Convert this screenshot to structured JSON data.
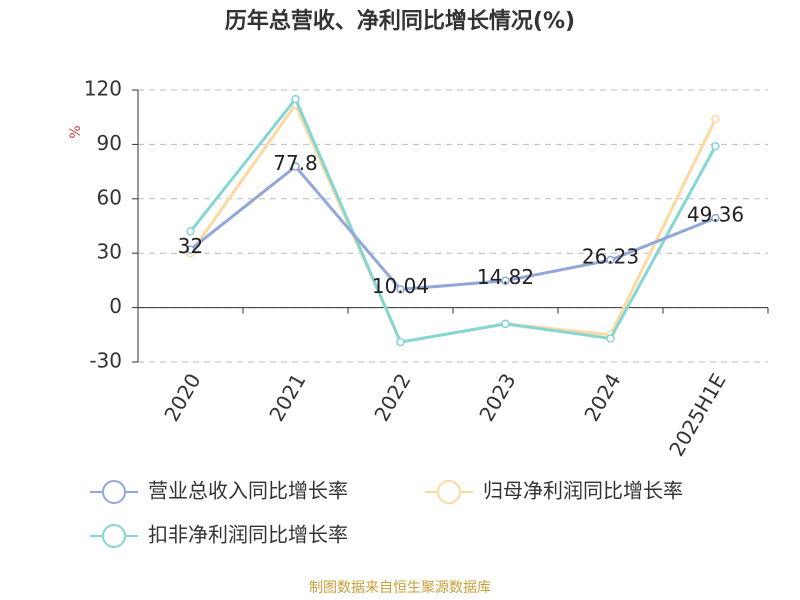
{
  "chart_data": {
    "type": "line",
    "title": "历年总营收、净利同比增长情况(%)",
    "y_label": "%",
    "source": "制图数据来自恒生聚源数据库",
    "categories": [
      "2020",
      "2021",
      "2022",
      "2023",
      "2024",
      "2025H1E"
    ],
    "series": [
      {
        "name": "营业总收入同比增长率",
        "color": "#91a7d9",
        "values": [
          32,
          77.8,
          10.04,
          14.82,
          26.23,
          49.36
        ],
        "show_labels": true
      },
      {
        "name": "归母净利润同比增长率",
        "color": "#fcd9a0",
        "values": [
          30,
          112,
          -19,
          -9,
          -15,
          104
        ],
        "show_labels": false
      },
      {
        "name": "扣非净利润同比增长率",
        "color": "#84d6d2",
        "values": [
          42,
          115,
          -19,
          -9,
          -17,
          89
        ],
        "show_labels": false
      }
    ],
    "ylim": [
      -30,
      120
    ],
    "yticks": [
      -30,
      0,
      30,
      60,
      90,
      120
    ],
    "grid": true
  }
}
